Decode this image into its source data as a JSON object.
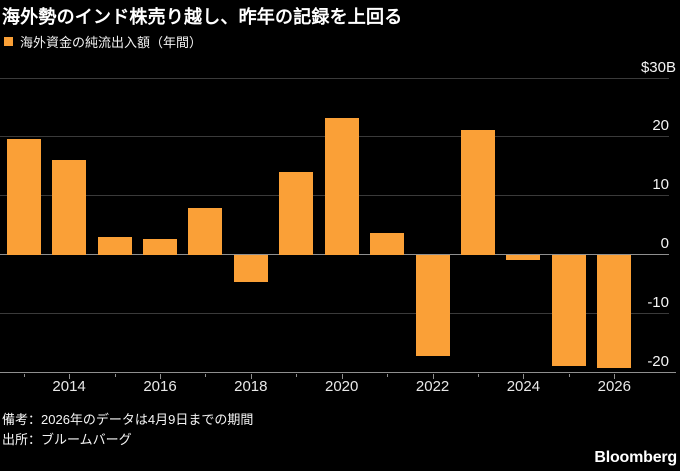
{
  "title": "海外勢のインド株売り越し、昨年の記録を上回る",
  "legend": {
    "label": "海外資金の純流出入額（年間）"
  },
  "footer": {
    "note": "備考：2026年のデータは4月9日までの期間",
    "source": "出所：ブルームバーグ"
  },
  "branding": {
    "logo": "Bloomberg"
  },
  "colors": {
    "background": "#000000",
    "bar": "#FAA037",
    "grid": "#3a3a3a",
    "axis": "#8f8f8f",
    "text": "#f5f5f5"
  },
  "chart_data": {
    "type": "bar",
    "title": "海外勢のインド株売り越し、昨年の記録を上回る",
    "series_label": "海外資金の純流出入額（年間）",
    "unit": "$B",
    "categories": [
      2013,
      2014,
      2015,
      2016,
      2017,
      2018,
      2019,
      2020,
      2021,
      2022,
      2023,
      2024,
      2025,
      2026
    ],
    "values": [
      19.7,
      16.1,
      3.1,
      2.7,
      8.0,
      -4.6,
      14.1,
      23.3,
      3.7,
      -17.1,
      21.3,
      -0.8,
      -18.9,
      -19.2
    ],
    "ylim": [
      -20,
      30
    ],
    "ytick_values": [
      30,
      20,
      10,
      0,
      -10,
      -20
    ],
    "ytick_labels": [
      "$30B",
      "20",
      "10",
      "0",
      "-10",
      "-20"
    ],
    "xtick_labeled_years": [
      2014,
      2016,
      2018,
      2020,
      2022,
      2024,
      2026
    ],
    "grid": true,
    "legend_position": "top-left",
    "bar_color": "#FAA037"
  }
}
